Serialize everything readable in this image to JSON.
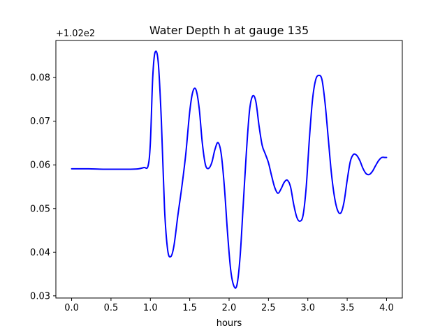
{
  "chart_data": {
    "type": "line",
    "title": "Water Depth h at gauge 135",
    "xlabel": "hours",
    "ylabel": "",
    "offset_text": "+1.02e2",
    "xlim": [
      -0.2,
      4.2
    ],
    "ylim": [
      0.0295,
      0.0885
    ],
    "xticks": [
      0.0,
      0.5,
      1.0,
      1.5,
      2.0,
      2.5,
      3.0,
      3.5,
      4.0
    ],
    "xtick_labels": [
      "0.0",
      "0.5",
      "1.0",
      "1.5",
      "2.0",
      "2.5",
      "3.0",
      "3.5",
      "4.0"
    ],
    "yticks": [
      0.03,
      0.04,
      0.05,
      0.06,
      0.07,
      0.08
    ],
    "ytick_labels": [
      "0.03",
      "0.04",
      "0.05",
      "0.06",
      "0.07",
      "0.08"
    ],
    "grid": false,
    "legend": "none",
    "series": [
      {
        "color": "#0000ff",
        "x": [
          0.0,
          0.2,
          0.4,
          0.6,
          0.75,
          0.85,
          0.92,
          0.97,
          1.0,
          1.03,
          1.06,
          1.1,
          1.14,
          1.18,
          1.22,
          1.26,
          1.3,
          1.35,
          1.4,
          1.45,
          1.5,
          1.54,
          1.58,
          1.62,
          1.66,
          1.7,
          1.74,
          1.78,
          1.82,
          1.86,
          1.9,
          1.94,
          1.98,
          2.02,
          2.06,
          2.1,
          2.14,
          2.18,
          2.22,
          2.26,
          2.3,
          2.34,
          2.38,
          2.42,
          2.46,
          2.5,
          2.54,
          2.58,
          2.62,
          2.66,
          2.7,
          2.74,
          2.78,
          2.82,
          2.86,
          2.9,
          2.94,
          2.98,
          3.02,
          3.06,
          3.1,
          3.14,
          3.18,
          3.22,
          3.26,
          3.3,
          3.34,
          3.38,
          3.42,
          3.46,
          3.5,
          3.54,
          3.58,
          3.62,
          3.66,
          3.7,
          3.74,
          3.78,
          3.82,
          3.86,
          3.9,
          3.94,
          3.98,
          4.0
        ],
        "y": [
          0.0591,
          0.0591,
          0.059,
          0.059,
          0.059,
          0.0591,
          0.0594,
          0.0597,
          0.065,
          0.08,
          0.0858,
          0.0835,
          0.07,
          0.05,
          0.0405,
          0.039,
          0.0415,
          0.0485,
          0.055,
          0.0625,
          0.0722,
          0.0768,
          0.0772,
          0.073,
          0.065,
          0.06,
          0.0592,
          0.0605,
          0.0635,
          0.0651,
          0.0625,
          0.055,
          0.0445,
          0.036,
          0.0323,
          0.0325,
          0.039,
          0.051,
          0.063,
          0.0725,
          0.0758,
          0.0745,
          0.069,
          0.0645,
          0.0625,
          0.0605,
          0.0575,
          0.0548,
          0.0535,
          0.0545,
          0.056,
          0.0565,
          0.055,
          0.051,
          0.048,
          0.0471,
          0.0485,
          0.055,
          0.066,
          0.075,
          0.0795,
          0.0805,
          0.0795,
          0.074,
          0.066,
          0.058,
          0.0525,
          0.0495,
          0.049,
          0.0515,
          0.0565,
          0.0608,
          0.0624,
          0.0622,
          0.061,
          0.0592,
          0.058,
          0.0578,
          0.0585,
          0.0598,
          0.061,
          0.0617,
          0.0617,
          0.0617
        ]
      }
    ]
  }
}
